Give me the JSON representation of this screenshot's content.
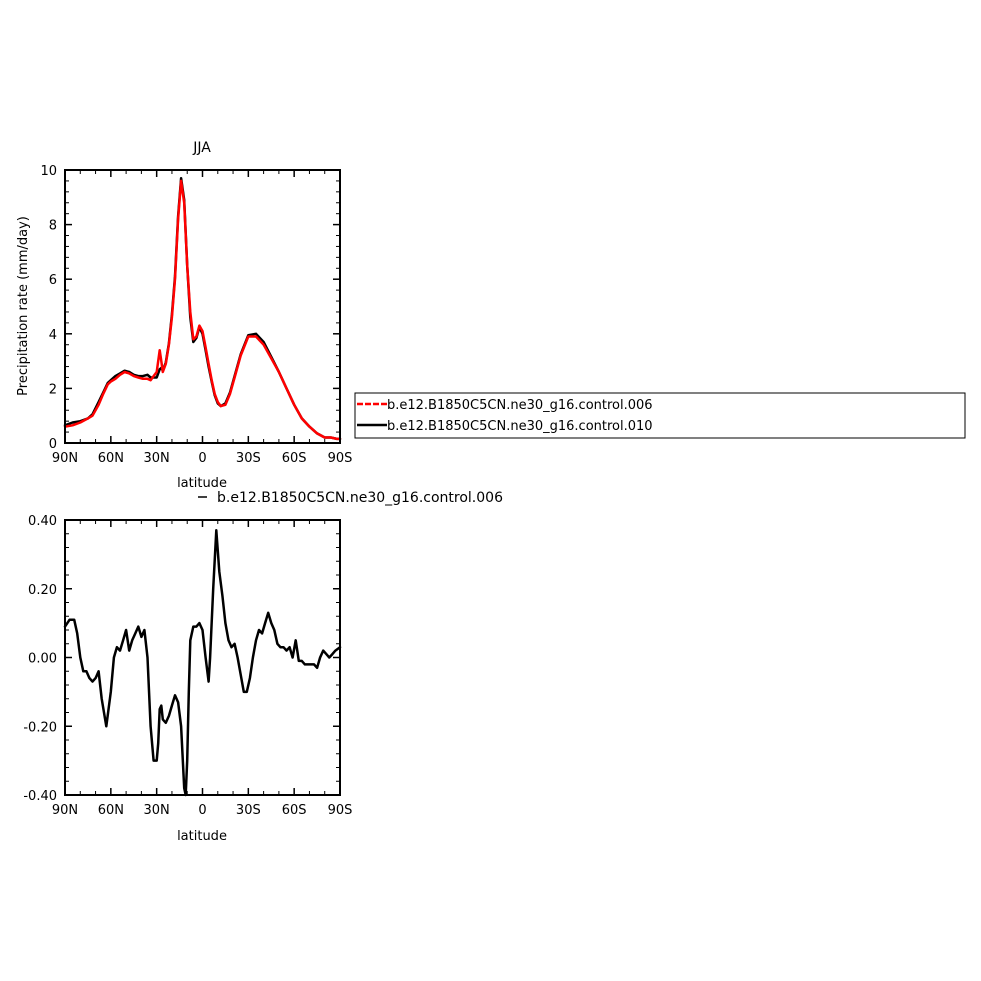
{
  "chart_data": [
    {
      "type": "line",
      "title": "JJA",
      "xlabel": "latitude",
      "ylabel": "Precipitation rate (mm/day)",
      "xlim": [
        90,
        -90
      ],
      "ylim": [
        0,
        10
      ],
      "x_ticks": [
        90,
        60,
        30,
        0,
        -30,
        -60,
        -90
      ],
      "x_tick_labels": [
        "90N",
        "60N",
        "30N",
        "0",
        "30S",
        "60S",
        "90S"
      ],
      "y_ticks": [
        0,
        2,
        4,
        6,
        8,
        10
      ],
      "y_tick_labels": [
        "0",
        "2",
        "4",
        "6",
        "8",
        "10"
      ],
      "legend": {
        "placement": "right",
        "entries": [
          {
            "label": "b.e12.B1850C5CN.ne30_g16.control.006",
            "color": "#ff0000",
            "dash": "dashed"
          },
          {
            "label": "b.e12.B1850C5CN.ne30_g16.control.010",
            "color": "#000000",
            "dash": "solid"
          }
        ]
      },
      "series": [
        {
          "name": "b.e12.B1850C5CN.ne30_g16.control.006",
          "color": "#ff0000",
          "x": [
            90,
            85,
            80,
            75,
            72,
            68,
            65,
            62,
            60,
            57,
            54,
            51,
            48,
            45,
            42,
            39,
            36,
            34,
            32,
            30,
            28,
            27,
            26,
            24,
            22,
            20,
            18,
            16,
            14,
            12,
            10,
            8,
            6,
            4,
            2,
            0,
            -2,
            -4,
            -6,
            -8,
            -10,
            -12,
            -15,
            -18,
            -21,
            -25,
            -30,
            -35,
            -40,
            -45,
            -50,
            -55,
            -60,
            -65,
            -70,
            -75,
            -80,
            -84,
            -88,
            -90
          ],
          "y": [
            0.6,
            0.65,
            0.75,
            0.9,
            1.0,
            1.4,
            1.8,
            2.15,
            2.25,
            2.35,
            2.5,
            2.6,
            2.55,
            2.45,
            2.4,
            2.35,
            2.35,
            2.3,
            2.45,
            2.6,
            3.4,
            3.0,
            2.6,
            2.9,
            3.6,
            4.6,
            6.0,
            8.2,
            9.6,
            8.8,
            6.5,
            4.8,
            3.8,
            3.9,
            4.3,
            4.1,
            3.5,
            2.9,
            2.3,
            1.8,
            1.5,
            1.35,
            1.4,
            1.8,
            2.4,
            3.2,
            3.9,
            3.9,
            3.6,
            3.1,
            2.6,
            2.0,
            1.4,
            0.9,
            0.6,
            0.35,
            0.2,
            0.2,
            0.15,
            0.15
          ]
        },
        {
          "name": "b.e12.B1850C5CN.ne30_g16.control.010",
          "color": "#000000",
          "x": [
            90,
            85,
            80,
            75,
            72,
            68,
            65,
            62,
            60,
            57,
            54,
            51,
            48,
            45,
            42,
            39,
            36,
            34,
            32,
            30,
            28,
            27,
            26,
            24,
            22,
            20,
            18,
            16,
            14,
            12,
            10,
            8,
            6,
            4,
            2,
            0,
            -2,
            -4,
            -6,
            -8,
            -10,
            -12,
            -15,
            -18,
            -21,
            -25,
            -30,
            -35,
            -40,
            -45,
            -50,
            -55,
            -60,
            -65,
            -70,
            -75,
            -80,
            -84,
            -88,
            -90
          ],
          "y": [
            0.65,
            0.75,
            0.8,
            0.9,
            1.05,
            1.5,
            1.85,
            2.2,
            2.3,
            2.45,
            2.55,
            2.65,
            2.6,
            2.5,
            2.45,
            2.45,
            2.5,
            2.4,
            2.4,
            2.4,
            2.7,
            2.75,
            2.65,
            2.95,
            3.65,
            4.7,
            6.1,
            8.3,
            9.7,
            8.9,
            6.5,
            4.6,
            3.7,
            3.85,
            4.25,
            4.0,
            3.4,
            2.8,
            2.25,
            1.75,
            1.45,
            1.35,
            1.45,
            1.85,
            2.45,
            3.25,
            3.95,
            4.0,
            3.7,
            3.15,
            2.6,
            2.0,
            1.4,
            0.9,
            0.6,
            0.35,
            0.2,
            0.2,
            0.15,
            0.15
          ]
        }
      ]
    },
    {
      "type": "line",
      "title": "",
      "xlabel": "latitude",
      "ylabel": "",
      "xlim": [
        90,
        -90
      ],
      "ylim": [
        -0.4,
        0.4
      ],
      "x_ticks": [
        90,
        60,
        30,
        0,
        -30,
        -60,
        -90
      ],
      "x_tick_labels": [
        "90N",
        "60N",
        "30N",
        "0",
        "30S",
        "60S",
        "90S"
      ],
      "y_ticks": [
        0.4,
        0.2,
        0.0,
        -0.2,
        -0.4
      ],
      "y_tick_labels": [
        "0.40",
        "0.20",
        "0.00",
        "-0.20",
        "-0.40"
      ],
      "legend": {
        "placement": "top",
        "entries": [
          {
            "label": "b.e12.B1850C5CN.ne30_g16.control.006",
            "color": "#000000",
            "dash": "solid"
          }
        ]
      },
      "series": [
        {
          "name": "b.e12.B1850C5CN.ne30_g16.control.006",
          "color": "#000000",
          "x": [
            90,
            87,
            84,
            82,
            80,
            78,
            76,
            74,
            72,
            70,
            68,
            66,
            63,
            60,
            58,
            56,
            54,
            52,
            50,
            48,
            46,
            44,
            42,
            40,
            38,
            36,
            34,
            32,
            30,
            29,
            28,
            27,
            26,
            24,
            22,
            20,
            18,
            16,
            14,
            12,
            11,
            10,
            9,
            8,
            6,
            4,
            2,
            0,
            -2,
            -4,
            -5,
            -7,
            -9,
            -11,
            -13,
            -15,
            -17,
            -19,
            -21,
            -23,
            -25,
            -27,
            -29,
            -31,
            -33,
            -35,
            -37,
            -39,
            -41,
            -43,
            -45,
            -47,
            -49,
            -51,
            -53,
            -55,
            -57,
            -59,
            -61,
            -63,
            -65,
            -67,
            -69,
            -71,
            -73,
            -75,
            -77,
            -79,
            -81,
            -83,
            -85,
            -87,
            -90
          ],
          "y": [
            0.09,
            0.11,
            0.11,
            0.07,
            0.0,
            -0.04,
            -0.04,
            -0.06,
            -0.07,
            -0.06,
            -0.04,
            -0.12,
            -0.2,
            -0.1,
            0.0,
            0.03,
            0.02,
            0.05,
            0.08,
            0.02,
            0.05,
            0.07,
            0.09,
            0.06,
            0.08,
            0.0,
            -0.2,
            -0.3,
            -0.3,
            -0.25,
            -0.15,
            -0.14,
            -0.18,
            -0.19,
            -0.17,
            -0.14,
            -0.11,
            -0.13,
            -0.2,
            -0.38,
            -0.4,
            -0.3,
            -0.1,
            0.05,
            0.09,
            0.09,
            0.1,
            0.08,
            0.0,
            -0.07,
            0.0,
            0.2,
            0.37,
            0.25,
            0.18,
            0.1,
            0.05,
            0.03,
            0.04,
            0.0,
            -0.05,
            -0.1,
            -0.1,
            -0.06,
            0.0,
            0.05,
            0.08,
            0.07,
            0.1,
            0.13,
            0.1,
            0.08,
            0.04,
            0.03,
            0.03,
            0.02,
            0.03,
            0.0,
            0.05,
            -0.01,
            -0.01,
            -0.02,
            -0.02,
            -0.02,
            -0.02,
            -0.03,
            0.0,
            0.02,
            0.01,
            0.0,
            0.01,
            0.02,
            0.03
          ]
        }
      ]
    }
  ]
}
